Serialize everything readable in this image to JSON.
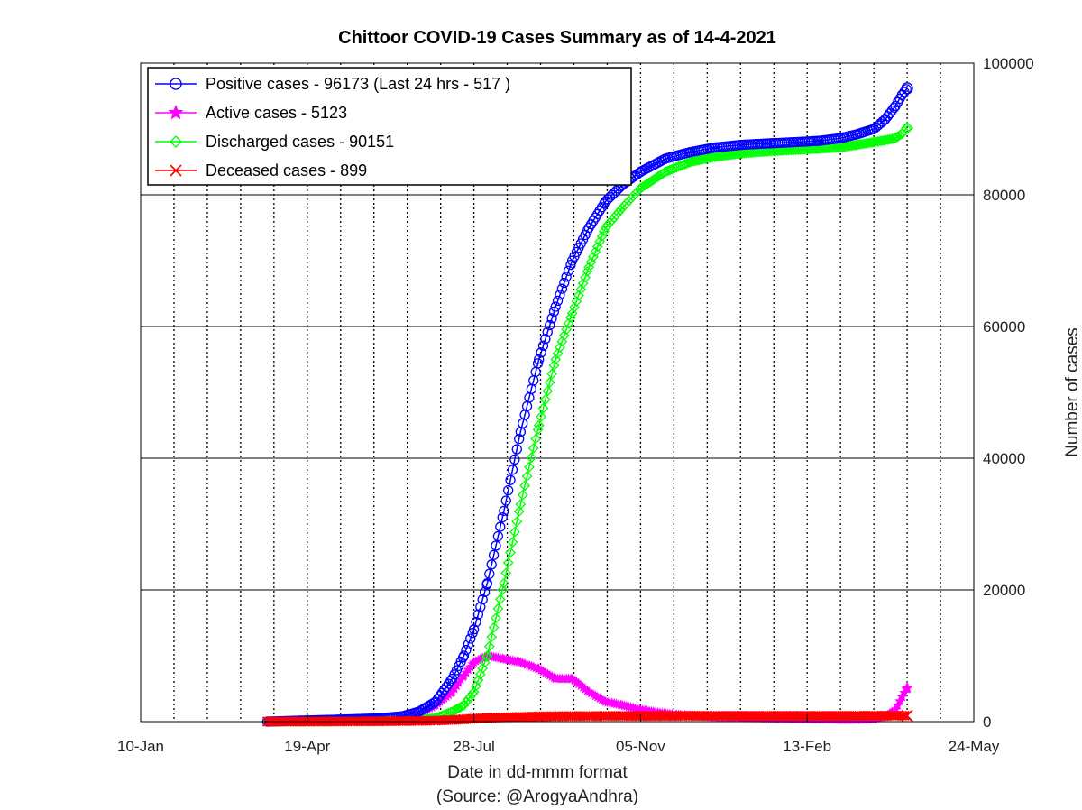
{
  "chart_data": {
    "type": "line",
    "title": "Chittoor COVID-19 Cases Summary as of 14-4-2021",
    "xlabel": "Date in dd-mmm format",
    "source_note": "(Source: @ArogyaAndhra)",
    "ylabel": "Number of cases",
    "x_ticks": [
      "10-Jan",
      "19-Apr",
      "28-Jul",
      "05-Nov",
      "13-Feb",
      "24-May"
    ],
    "y_ticks": [
      "0",
      "20000",
      "40000",
      "60000",
      "80000",
      "100000"
    ],
    "x_range": [
      "2020-01-10",
      "2021-05-24"
    ],
    "ylim": [
      0,
      100000
    ],
    "y_axis_position": "right",
    "grid": {
      "x": "dotted",
      "y": "solid"
    },
    "legend_position": "top-left",
    "x": [
      "2020-03-26",
      "2020-04-15",
      "2020-05-01",
      "2020-05-15",
      "2020-06-01",
      "2020-06-15",
      "2020-06-25",
      "2020-07-05",
      "2020-07-15",
      "2020-07-22",
      "2020-07-28",
      "2020-08-05",
      "2020-08-15",
      "2020-08-25",
      "2020-09-05",
      "2020-09-15",
      "2020-09-25",
      "2020-10-05",
      "2020-10-15",
      "2020-10-25",
      "2020-11-05",
      "2020-11-20",
      "2020-12-05",
      "2020-12-20",
      "2021-01-05",
      "2021-01-20",
      "2021-02-05",
      "2021-02-20",
      "2021-03-05",
      "2021-03-15",
      "2021-03-25",
      "2021-04-01",
      "2021-04-07",
      "2021-04-11",
      "2021-04-14"
    ],
    "series": [
      {
        "name": "Positive cases - 96173 (Last 24 hrs - 517 )",
        "color": "#0000ff",
        "marker": "circle",
        "values": [
          0,
          150,
          250,
          350,
          500,
          800,
          1500,
          3000,
          6500,
          10000,
          14000,
          21000,
          32000,
          44000,
          55000,
          63000,
          70000,
          75000,
          79000,
          81500,
          83500,
          85500,
          86500,
          87200,
          87600,
          87800,
          88000,
          88200,
          88600,
          89200,
          90000,
          91500,
          93500,
          95200,
          96173
        ]
      },
      {
        "name": "Active cases - 5123",
        "color": "#ff00ff",
        "marker": "star",
        "values": [
          0,
          120,
          200,
          250,
          300,
          600,
          1200,
          2500,
          4500,
          7000,
          9000,
          10000,
          9500,
          9000,
          8000,
          6500,
          6500,
          4500,
          3000,
          2500,
          1800,
          1200,
          900,
          700,
          600,
          500,
          400,
          350,
          300,
          300,
          400,
          800,
          1800,
          3800,
          5123
        ]
      },
      {
        "name": "Discharged cases - 90151",
        "color": "#00ff00",
        "marker": "diamond",
        "values": [
          0,
          20,
          40,
          80,
          150,
          250,
          300,
          500,
          1500,
          2500,
          4500,
          10000,
          21000,
          33000,
          45000,
          55000,
          62000,
          69000,
          75000,
          78000,
          81000,
          83500,
          85000,
          85800,
          86300,
          86600,
          86800,
          87000,
          87200,
          87600,
          88000,
          88300,
          88600,
          89300,
          90151
        ]
      },
      {
        "name": "Deceased cases - 899",
        "color": "#ff0000",
        "marker": "cross",
        "values": [
          0,
          10,
          20,
          30,
          50,
          80,
          100,
          150,
          250,
          350,
          450,
          550,
          650,
          720,
          780,
          820,
          840,
          850,
          860,
          865,
          870,
          872,
          875,
          878,
          880,
          882,
          884,
          886,
          888,
          890,
          892,
          894,
          896,
          898,
          899
        ]
      }
    ]
  }
}
